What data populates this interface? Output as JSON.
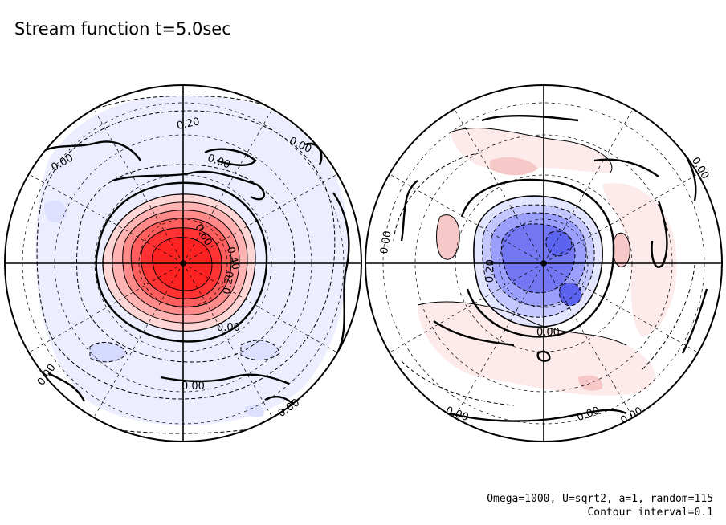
{
  "chart_data": {
    "type": "contour",
    "title": "Stream function t=5.0sec",
    "annotation": "Omega=1000, U=sqrt2, a=1, random=115",
    "contour_interval_text": "Contour interval=0.1",
    "contour_interval": 0.1,
    "projection": "polar orthographic, two hemispheres",
    "colors": {
      "positive": "#ff2a2a",
      "negative": "#4f58ee",
      "faint_negative": "#eceeff",
      "faint_positive": "#fdeaea"
    },
    "panels": [
      {
        "name": "left-hemisphere",
        "center_extremum": "positive",
        "peak_estimate": 0.9,
        "contour_labels": [
          "0.20",
          "0.00",
          "0.00",
          "0.00",
          "0.60",
          "0.40",
          "0.20",
          "0.00",
          "0.00",
          "0.00",
          "0.00"
        ]
      },
      {
        "name": "right-hemisphere",
        "center_extremum": "negative",
        "peak_estimate": -0.5,
        "contour_labels": [
          "0.00",
          "0.00",
          "0.20",
          "0.00",
          "0.00",
          "0.00",
          "0.00"
        ]
      }
    ]
  }
}
